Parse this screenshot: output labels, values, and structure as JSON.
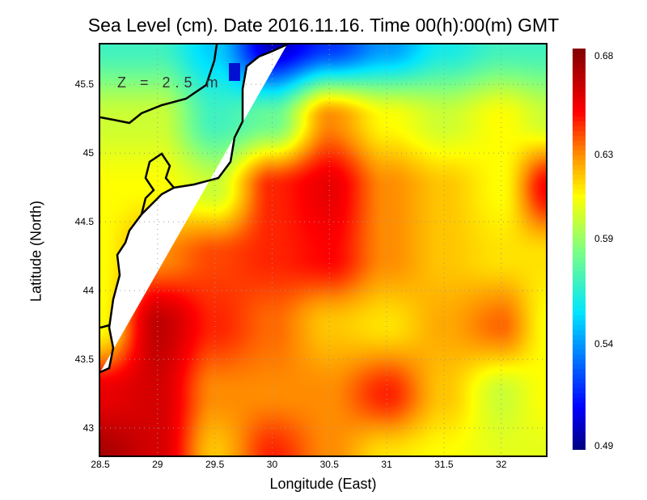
{
  "chart_data": {
    "type": "heatmap",
    "title": "Sea Level (cm). Date 2016.11.16. Time 00(h):00(m) GMT",
    "xlabel": "Longitude (East)",
    "ylabel": "Latitude (North)",
    "annotation": "Z = 2.5 m",
    "xlim": [
      28.5,
      32.39
    ],
    "ylim": [
      42.8,
      45.79
    ],
    "xticks": [
      "28.5",
      "29",
      "29.5",
      "30",
      "30.5",
      "31",
      "31.5",
      "32"
    ],
    "xtick_values": [
      28.5,
      29,
      29.5,
      30,
      30.5,
      31,
      31.5,
      32
    ],
    "yticks": [
      "43",
      "43.5",
      "44",
      "44.5",
      "45",
      "45.5"
    ],
    "ytick_values": [
      43,
      43.5,
      44,
      44.5,
      45,
      45.5
    ],
    "grid": true,
    "colorbar": {
      "ticks": [
        "0.68",
        "0.63",
        "0.59",
        "0.54",
        "0.49"
      ],
      "tick_values": [
        0.68,
        0.63,
        0.59,
        0.54,
        0.49
      ],
      "range": [
        0.49,
        0.68
      ],
      "colorscale": [
        [
          0.49,
          "#000080"
        ],
        [
          0.51,
          "#0000ff"
        ],
        [
          0.555,
          "#00e5ff"
        ],
        [
          0.585,
          "#80ff80"
        ],
        [
          0.61,
          "#ffff00"
        ],
        [
          0.63,
          "#ff8c00"
        ],
        [
          0.65,
          "#ff0000"
        ],
        [
          0.68,
          "#800000"
        ]
      ]
    },
    "grid_lon": [
      28.5,
      29,
      29.5,
      30,
      30.5,
      31,
      31.5,
      32,
      32.4
    ],
    "grid_lat": [
      45.79,
      45.25,
      44.75,
      44.25,
      43.75,
      43.25,
      42.8
    ],
    "values": [
      [
        0.57,
        0.57,
        0.55,
        0.5,
        0.52,
        0.54,
        0.56,
        0.57,
        0.57
      ],
      [
        0.6,
        0.6,
        0.57,
        0.58,
        0.63,
        0.61,
        0.6,
        0.61,
        0.6
      ],
      [
        0.61,
        0.61,
        0.6,
        0.645,
        0.655,
        0.63,
        0.62,
        0.61,
        0.65
      ],
      [
        0.61,
        0.63,
        0.64,
        0.645,
        0.65,
        0.63,
        0.62,
        0.615,
        0.615
      ],
      [
        0.61,
        0.665,
        0.645,
        0.635,
        0.62,
        0.615,
        0.625,
        0.635,
        0.61
      ],
      [
        0.655,
        0.66,
        0.63,
        0.63,
        0.63,
        0.645,
        0.62,
        0.6,
        0.61
      ],
      [
        0.67,
        0.66,
        0.62,
        0.645,
        0.63,
        0.615,
        0.61,
        0.605,
        0.605
      ]
    ]
  }
}
